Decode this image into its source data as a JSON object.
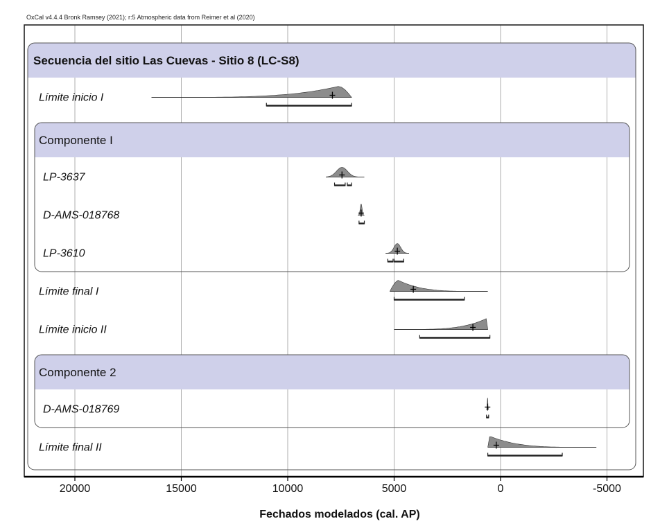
{
  "chart_data": {
    "type": "oxcal-multiplot",
    "credit": "OxCal v4.4.4 Bronk Ramsey (2021); r:5 Atmospheric data from Reimer et al (2020)",
    "xlabel": "Fechados modelados (cal. AP)",
    "xlim": [
      22000,
      -6000
    ],
    "xticks": [
      20000,
      15000,
      10000,
      5000,
      0,
      -5000
    ],
    "xtick_labels": [
      "20000",
      "15000",
      "10000",
      "5000",
      "0",
      "-5000"
    ],
    "grid": true,
    "colors": {
      "group_header": "#cfd0ea",
      "distribution_fill": "#8c8c8c",
      "prior_line": "#000000"
    },
    "sequence": {
      "title": "Secuencia del sitio Las Cuevas - Sitio 8 (LC-S8)",
      "rows": [
        {
          "kind": "boundary",
          "label": "Límite inicio I",
          "prior_range": [
            16400,
            7000
          ],
          "peak": 7600,
          "mean": 7900,
          "hpd": [
            [
              11000,
              7000
            ]
          ],
          "shape": "skew-right-peak"
        },
        {
          "kind": "phase",
          "title": "Componente I",
          "rows": [
            {
              "kind": "date",
              "label": "LP-3637",
              "prior_range": [
                8200,
                6400
              ],
              "peak": 7450,
              "mean": 7450,
              "hpd": [
                [
                  7800,
                  7300
                ],
                [
                  7200,
                  7000
                ]
              ],
              "shape": "narrow"
            },
            {
              "kind": "date",
              "label": "D-AMS-018768",
              "prior_range": [
                6700,
                6400
              ],
              "peak": 6550,
              "mean": 6550,
              "hpd": [
                [
                  6650,
                  6400
                ]
              ],
              "shape": "spike"
            },
            {
              "kind": "date",
              "label": "LP-3610",
              "prior_range": [
                5400,
                4300
              ],
              "peak": 4850,
              "mean": 4850,
              "hpd": [
                [
                  5300,
                  5050
                ],
                [
                  5000,
                  4550
                ]
              ],
              "shape": "narrow"
            }
          ]
        },
        {
          "kind": "boundary",
          "label": "Límite final I",
          "prior_range": [
            5200,
            600
          ],
          "peak": 4800,
          "mean": 4100,
          "hpd": [
            [
              5000,
              1700
            ]
          ],
          "shape": "skew-left-peak"
        },
        {
          "kind": "boundary",
          "label": "Límite inicio II",
          "prior_range": [
            5000,
            600
          ],
          "peak": 650,
          "mean": 1300,
          "hpd": [
            [
              3800,
              500
            ]
          ],
          "shape": "skew-right-peak"
        },
        {
          "kind": "phase",
          "title": "Componente 2",
          "rows": [
            {
              "kind": "date",
              "label": "D-AMS-018769",
              "prior_range": [
                660,
                560
              ],
              "peak": 610,
              "mean": 610,
              "hpd": [
                [
                  660,
                  560
                ]
              ],
              "shape": "spike"
            }
          ]
        },
        {
          "kind": "boundary",
          "label": "Límite final II",
          "prior_range": [
            600,
            -4500
          ],
          "peak": 500,
          "mean": 200,
          "hpd": [
            [
              600,
              -2900
            ]
          ],
          "shape": "skew-left-peak"
        }
      ]
    }
  }
}
